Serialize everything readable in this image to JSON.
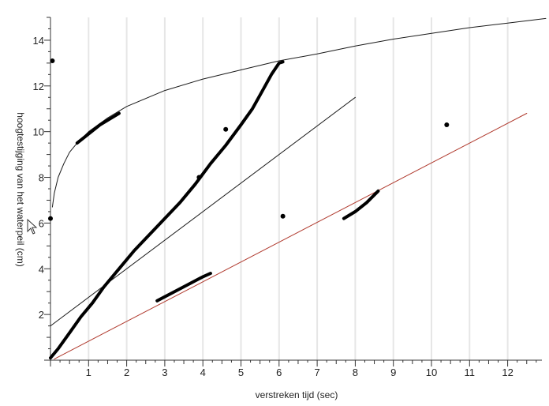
{
  "chart_data": {
    "type": "scatter",
    "xlabel": "verstreken tijd (sec)",
    "ylabel": "hoogtestijging van het waterpeil (cm)",
    "xlim": [
      0,
      13
    ],
    "ylim": [
      0,
      15
    ],
    "x_ticks": [
      1,
      2,
      3,
      4,
      5,
      6,
      7,
      8,
      9,
      10,
      11,
      12
    ],
    "y_ticks": [
      2,
      4,
      6,
      8,
      10,
      12,
      14
    ],
    "grid": "vertical-major",
    "series": [
      {
        "kind": "curve",
        "color": "#1a1a1a",
        "x": [
          0.05,
          0.1,
          0.2,
          0.35,
          0.5,
          0.7,
          1.0,
          1.5,
          2.0,
          3.0,
          4.0,
          5.0,
          6.0,
          7.0,
          8.0,
          9.0,
          10.0,
          11.0,
          12.0,
          13.0
        ],
        "y": [
          6.7,
          7.3,
          8.0,
          8.6,
          9.1,
          9.5,
          10.0,
          10.6,
          11.1,
          11.8,
          12.3,
          12.7,
          13.1,
          13.4,
          13.75,
          14.05,
          14.3,
          14.55,
          14.75,
          14.95
        ]
      },
      {
        "kind": "line",
        "color": "#1a1a1a",
        "x": [
          0,
          8.0
        ],
        "y": [
          1.5,
          11.5
        ]
      },
      {
        "kind": "line",
        "color": "#b03a2e",
        "x": [
          0.1,
          12.5
        ],
        "y": [
          0.05,
          10.8
        ]
      },
      {
        "kind": "data-trace",
        "color": "#000000",
        "x": [
          0,
          0.2,
          0.5,
          0.8,
          1.1,
          1.4,
          1.8,
          2.2,
          2.6,
          3.0,
          3.4,
          3.8,
          4.2,
          4.6,
          5.0,
          5.3,
          5.6,
          5.8,
          6.0,
          6.1
        ],
        "y": [
          0.1,
          0.5,
          1.2,
          1.9,
          2.5,
          3.2,
          4.0,
          4.8,
          5.5,
          6.2,
          6.9,
          7.7,
          8.6,
          9.4,
          10.3,
          11.0,
          11.9,
          12.5,
          13.0,
          13.05
        ]
      },
      {
        "kind": "data-trace",
        "color": "#000000",
        "x": [
          0.7,
          1.0,
          1.3,
          1.6,
          1.8
        ],
        "y": [
          9.5,
          9.9,
          10.3,
          10.6,
          10.8
        ]
      },
      {
        "kind": "data-trace",
        "color": "#000000",
        "x": [
          2.8,
          3.2,
          3.6,
          4.0,
          4.2
        ],
        "y": [
          2.6,
          2.95,
          3.3,
          3.65,
          3.8
        ]
      },
      {
        "kind": "data-trace",
        "color": "#000000",
        "x": [
          7.7,
          8.0,
          8.3,
          8.6
        ],
        "y": [
          6.2,
          6.5,
          6.9,
          7.4
        ]
      },
      {
        "kind": "points",
        "color": "#000000",
        "x": [
          0.0,
          0.05,
          3.9,
          4.6,
          6.1,
          10.4
        ],
        "y": [
          6.2,
          13.1,
          8.0,
          10.1,
          6.3,
          10.3
        ]
      }
    ]
  },
  "icons": {
    "cursor": "mouse-pointer-icon"
  }
}
